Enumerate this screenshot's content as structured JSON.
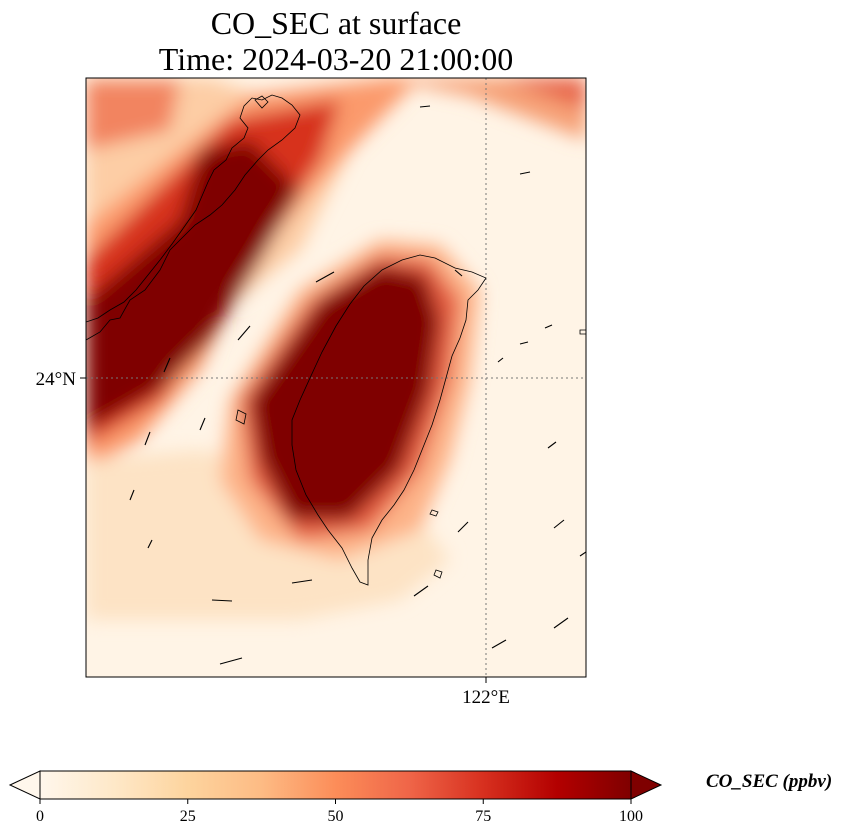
{
  "title": {
    "line1": "CO_SEC at surface",
    "line2": "Time: 2024-03-20 21:00:00"
  },
  "axes": {
    "lat_label": "24°N",
    "lon_label": "122°E"
  },
  "colorbar": {
    "label": "CO_SEC (ppbv)",
    "ticks": [
      "0",
      "25",
      "50",
      "75",
      "100"
    ],
    "tick_values": [
      0,
      25,
      50,
      75,
      100
    ],
    "min": 0,
    "max": 100,
    "extend": "both",
    "colormap": "OrRd",
    "colors": [
      "#fff7ec",
      "#fee8c8",
      "#fdd49e",
      "#fdbb84",
      "#fc8d59",
      "#ef6548",
      "#d7301f",
      "#b30000",
      "#7f0000"
    ]
  },
  "map": {
    "gridlines": "dotted",
    "features": [
      "coastline",
      "wind-vectors"
    ]
  }
}
